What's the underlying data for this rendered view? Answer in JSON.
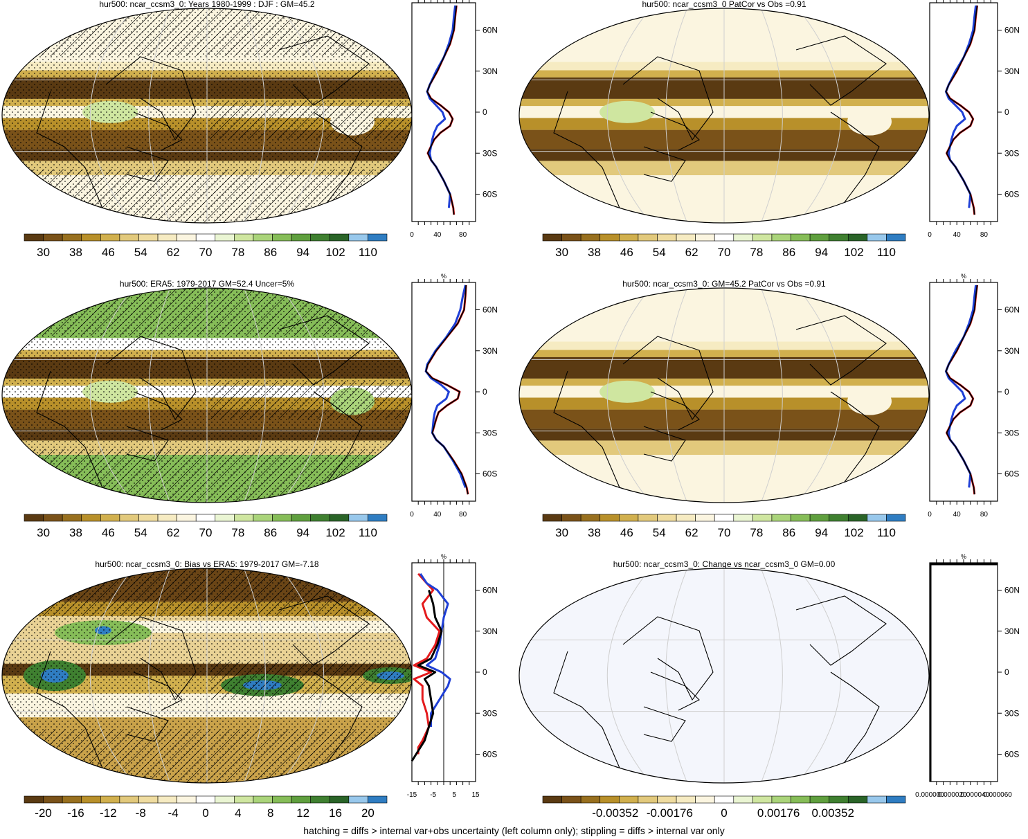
{
  "footnote": "hatching = diffs > internal var+obs uncertainty (left column only); stippling = diffs > internal var only",
  "colors": {
    "abs_scale": [
      "#5a3a12",
      "#7a5219",
      "#98701f",
      "#b8902a",
      "#d1b04e",
      "#e2c97c",
      "#efdca0",
      "#f6ebc2",
      "#fbf5e0",
      "#ffffff",
      "#eaf5d3",
      "#cfe6a0",
      "#aad47a",
      "#86bd58",
      "#5f9f3e",
      "#3f8030",
      "#2a6428",
      "#98c8ec",
      "#2f7dc2"
    ],
    "diff_scale": [
      "#5a3a12",
      "#7a5219",
      "#98701f",
      "#b8902a",
      "#d1b04e",
      "#e2c97c",
      "#efdca0",
      "#f6ebc2",
      "#fbf5e0",
      "#ffffff",
      "#eaf5d3",
      "#cfe6a0",
      "#aad47a",
      "#86bd58",
      "#5f9f3e",
      "#3f8030",
      "#2a6428",
      "#98c8ec",
      "#2f7dc2"
    ],
    "model_line": "#e41a1c",
    "obs_line": "#1f3fd6",
    "mean_line": "#000000"
  },
  "panels": [
    {
      "id": "p1",
      "title": "hur500: ncar_ccsm3_0: Years 1980-1999 : DJF : GM=45.2",
      "kind": "abs",
      "hatch": true,
      "stipple": true,
      "colorbar_labels": [
        "30",
        "38",
        "46",
        "54",
        "62",
        "70",
        "78",
        "86",
        "94",
        "102",
        "110"
      ],
      "profile": {
        "xticks": [
          "0",
          "40",
          "80"
        ],
        "xmin": 0,
        "xmax": 100,
        "unit": "%"
      }
    },
    {
      "id": "p2",
      "title": "hur500: ncar_ccsm3_0 PatCor vs Obs =0.91",
      "kind": "abs",
      "hatch": false,
      "stipple": false,
      "colorbar_labels": [
        "30",
        "38",
        "46",
        "54",
        "62",
        "70",
        "78",
        "86",
        "94",
        "102",
        "110"
      ],
      "profile": {
        "xticks": [
          "0",
          "40",
          "80"
        ],
        "xmin": 0,
        "xmax": 100,
        "unit": "%"
      }
    },
    {
      "id": "p3",
      "title": "hur500: ERA5: 1979-2017 GM=52.4 Uncer=5%",
      "kind": "obs",
      "hatch": true,
      "stipple": true,
      "colorbar_labels": [
        "30",
        "38",
        "46",
        "54",
        "62",
        "70",
        "78",
        "86",
        "94",
        "102",
        "110"
      ],
      "profile": {
        "xticks": [
          "0",
          "40",
          "80"
        ],
        "xmin": 0,
        "xmax": 100,
        "unit": "%"
      }
    },
    {
      "id": "p4",
      "title": "hur500: ncar_ccsm3_0: GM=45.2 PatCor vs Obs =0.91",
      "kind": "abs",
      "hatch": false,
      "stipple": false,
      "colorbar_labels": [
        "30",
        "38",
        "46",
        "54",
        "62",
        "70",
        "78",
        "86",
        "94",
        "102",
        "110"
      ],
      "profile": {
        "xticks": [
          "0",
          "40",
          "80"
        ],
        "xmin": 0,
        "xmax": 100,
        "unit": "%"
      }
    },
    {
      "id": "p5",
      "title": "hur500: ncar_ccsm3_0: Bias vs ERA5: 1979-2017 GM=-7.18",
      "kind": "bias",
      "hatch": true,
      "stipple": true,
      "colorbar_labels": [
        "-20",
        "-16",
        "-12",
        "-8",
        "-4",
        "0",
        "4",
        "8",
        "12",
        "16",
        "20"
      ],
      "profile": {
        "xticks": [
          "-15",
          "-5",
          "5",
          "15"
        ],
        "xmin": -15,
        "xmax": 15,
        "unit": "%"
      }
    },
    {
      "id": "p6",
      "title": "hur500: ncar_ccsm3_0: Change vs ncar_ccsm3_0 GM=0.00",
      "kind": "change",
      "hatch": false,
      "stipple": false,
      "colorbar_labels": [
        "-0.00352",
        "-0.00176",
        "0",
        "0.00176",
        "0.00352"
      ],
      "profile": {
        "xticks": [
          "0.000000",
          "0.000020",
          "0.000040",
          "0.000060"
        ],
        "xmin": 0,
        "xmax": 6e-05,
        "unit": "%"
      }
    }
  ],
  "lat_labels": [
    "60N",
    "30N",
    "0",
    "30S",
    "60S"
  ],
  "lat_values": [
    60,
    30,
    0,
    -30,
    -60
  ],
  "profiles": {
    "abs_model": {
      "lat": [
        78,
        70,
        60,
        50,
        40,
        30,
        20,
        15,
        10,
        5,
        0,
        -5,
        -10,
        -15,
        -20,
        -25,
        -30,
        -35,
        -40,
        -50,
        -60,
        -70,
        -75
      ],
      "val": [
        70,
        68,
        66,
        60,
        50,
        40,
        28,
        24,
        30,
        45,
        58,
        64,
        60,
        45,
        35,
        30,
        25,
        30,
        38,
        50,
        60,
        65,
        66
      ]
    },
    "abs_obs": {
      "lat": [
        78,
        70,
        60,
        50,
        40,
        30,
        20,
        15,
        10,
        5,
        0,
        -5,
        -10,
        -15,
        -20,
        -25,
        -30,
        -35,
        -40,
        -50,
        -60,
        -70
      ],
      "val": [
        68,
        66,
        64,
        58,
        50,
        38,
        28,
        24,
        28,
        38,
        48,
        52,
        40,
        35,
        32,
        30,
        28,
        30,
        38,
        50,
        60,
        58
      ]
    },
    "obs_model": {
      "lat": [
        78,
        70,
        60,
        50,
        40,
        30,
        20,
        15,
        10,
        5,
        0,
        -5,
        -10,
        -15,
        -20,
        -25,
        -30,
        -35,
        -40,
        -50,
        -60,
        -70,
        -75
      ],
      "val": [
        85,
        84,
        82,
        72,
        55,
        38,
        25,
        22,
        32,
        55,
        75,
        72,
        55,
        42,
        38,
        35,
        32,
        38,
        50,
        65,
        78,
        86,
        88
      ]
    },
    "obs_obs": {
      "lat": [
        78,
        70,
        60,
        50,
        40,
        30,
        20,
        15,
        10,
        5,
        0,
        -5,
        -10,
        -15,
        -20,
        -25,
        -30,
        -35,
        -40,
        -50,
        -60,
        -70
      ],
      "val": [
        84,
        80,
        76,
        68,
        54,
        37,
        24,
        22,
        30,
        46,
        58,
        54,
        40,
        36,
        34,
        33,
        32,
        38,
        50,
        64,
        76,
        84
      ]
    },
    "bias_model": {
      "lat": [
        72,
        65,
        60,
        50,
        40,
        30,
        20,
        10,
        5,
        0,
        -5,
        -10,
        -20,
        -30,
        -40,
        -50,
        -55,
        -60
      ],
      "val": [
        -12,
        -8,
        -5,
        -10,
        -8,
        -2,
        -4,
        -8,
        -14,
        -6,
        -14,
        -10,
        -10,
        -8,
        -7,
        -10,
        -12,
        -12
      ]
    },
    "bias_obs": {
      "lat": [
        72,
        65,
        60,
        50,
        40,
        30,
        20,
        10,
        5,
        0,
        -5,
        -10,
        -20,
        -30,
        -40
      ],
      "val": [
        -11,
        -8,
        -3,
        2,
        0,
        -1,
        -2,
        -4,
        -8,
        -1,
        3,
        2,
        -2,
        -6,
        -6
      ]
    },
    "bias_mean": {
      "lat": [
        60,
        50,
        40,
        30,
        20,
        10,
        5,
        0,
        -5,
        -10,
        -20,
        -30,
        -40,
        -50,
        -60,
        -65
      ],
      "val": [
        -7,
        -5,
        -4,
        -1,
        -3,
        -6,
        -12,
        -4,
        -9,
        -7,
        -6,
        -5,
        -7,
        -9,
        -13,
        -15
      ]
    }
  }
}
